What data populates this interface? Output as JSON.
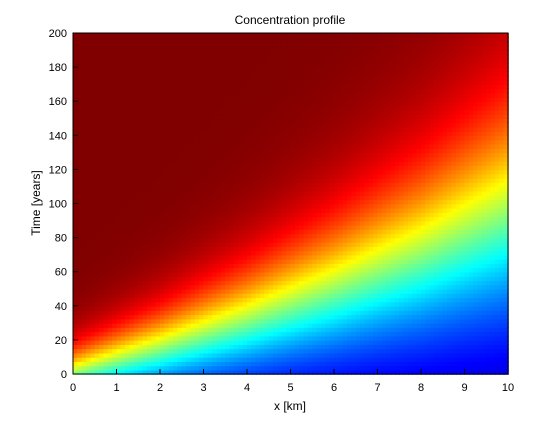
{
  "chart_data": {
    "type": "heatmap",
    "title": "Concentration profile",
    "xlabel": "x [km]",
    "ylabel": "Time [years]",
    "xlim": [
      0,
      10
    ],
    "ylim": [
      0,
      200
    ],
    "x_ticks": [
      0,
      1,
      2,
      3,
      4,
      5,
      6,
      7,
      8,
      9,
      10
    ],
    "y_ticks": [
      0,
      20,
      40,
      60,
      80,
      100,
      120,
      140,
      160,
      180,
      200
    ],
    "x_tick_labels": [
      "0",
      "1",
      "2",
      "3",
      "4",
      "5",
      "6",
      "7",
      "8",
      "9",
      "10"
    ],
    "y_tick_labels": [
      "0",
      "20",
      "40",
      "60",
      "80",
      "100",
      "120",
      "140",
      "160",
      "180",
      "200"
    ],
    "colormap": "jet",
    "grid": false,
    "legend": "none",
    "isoline_front_time_at_x": {
      "x": [
        0,
        2,
        4,
        6,
        8,
        10
      ],
      "t_midvalue": [
        0,
        14,
        30,
        48,
        68,
        92
      ]
    }
  }
}
